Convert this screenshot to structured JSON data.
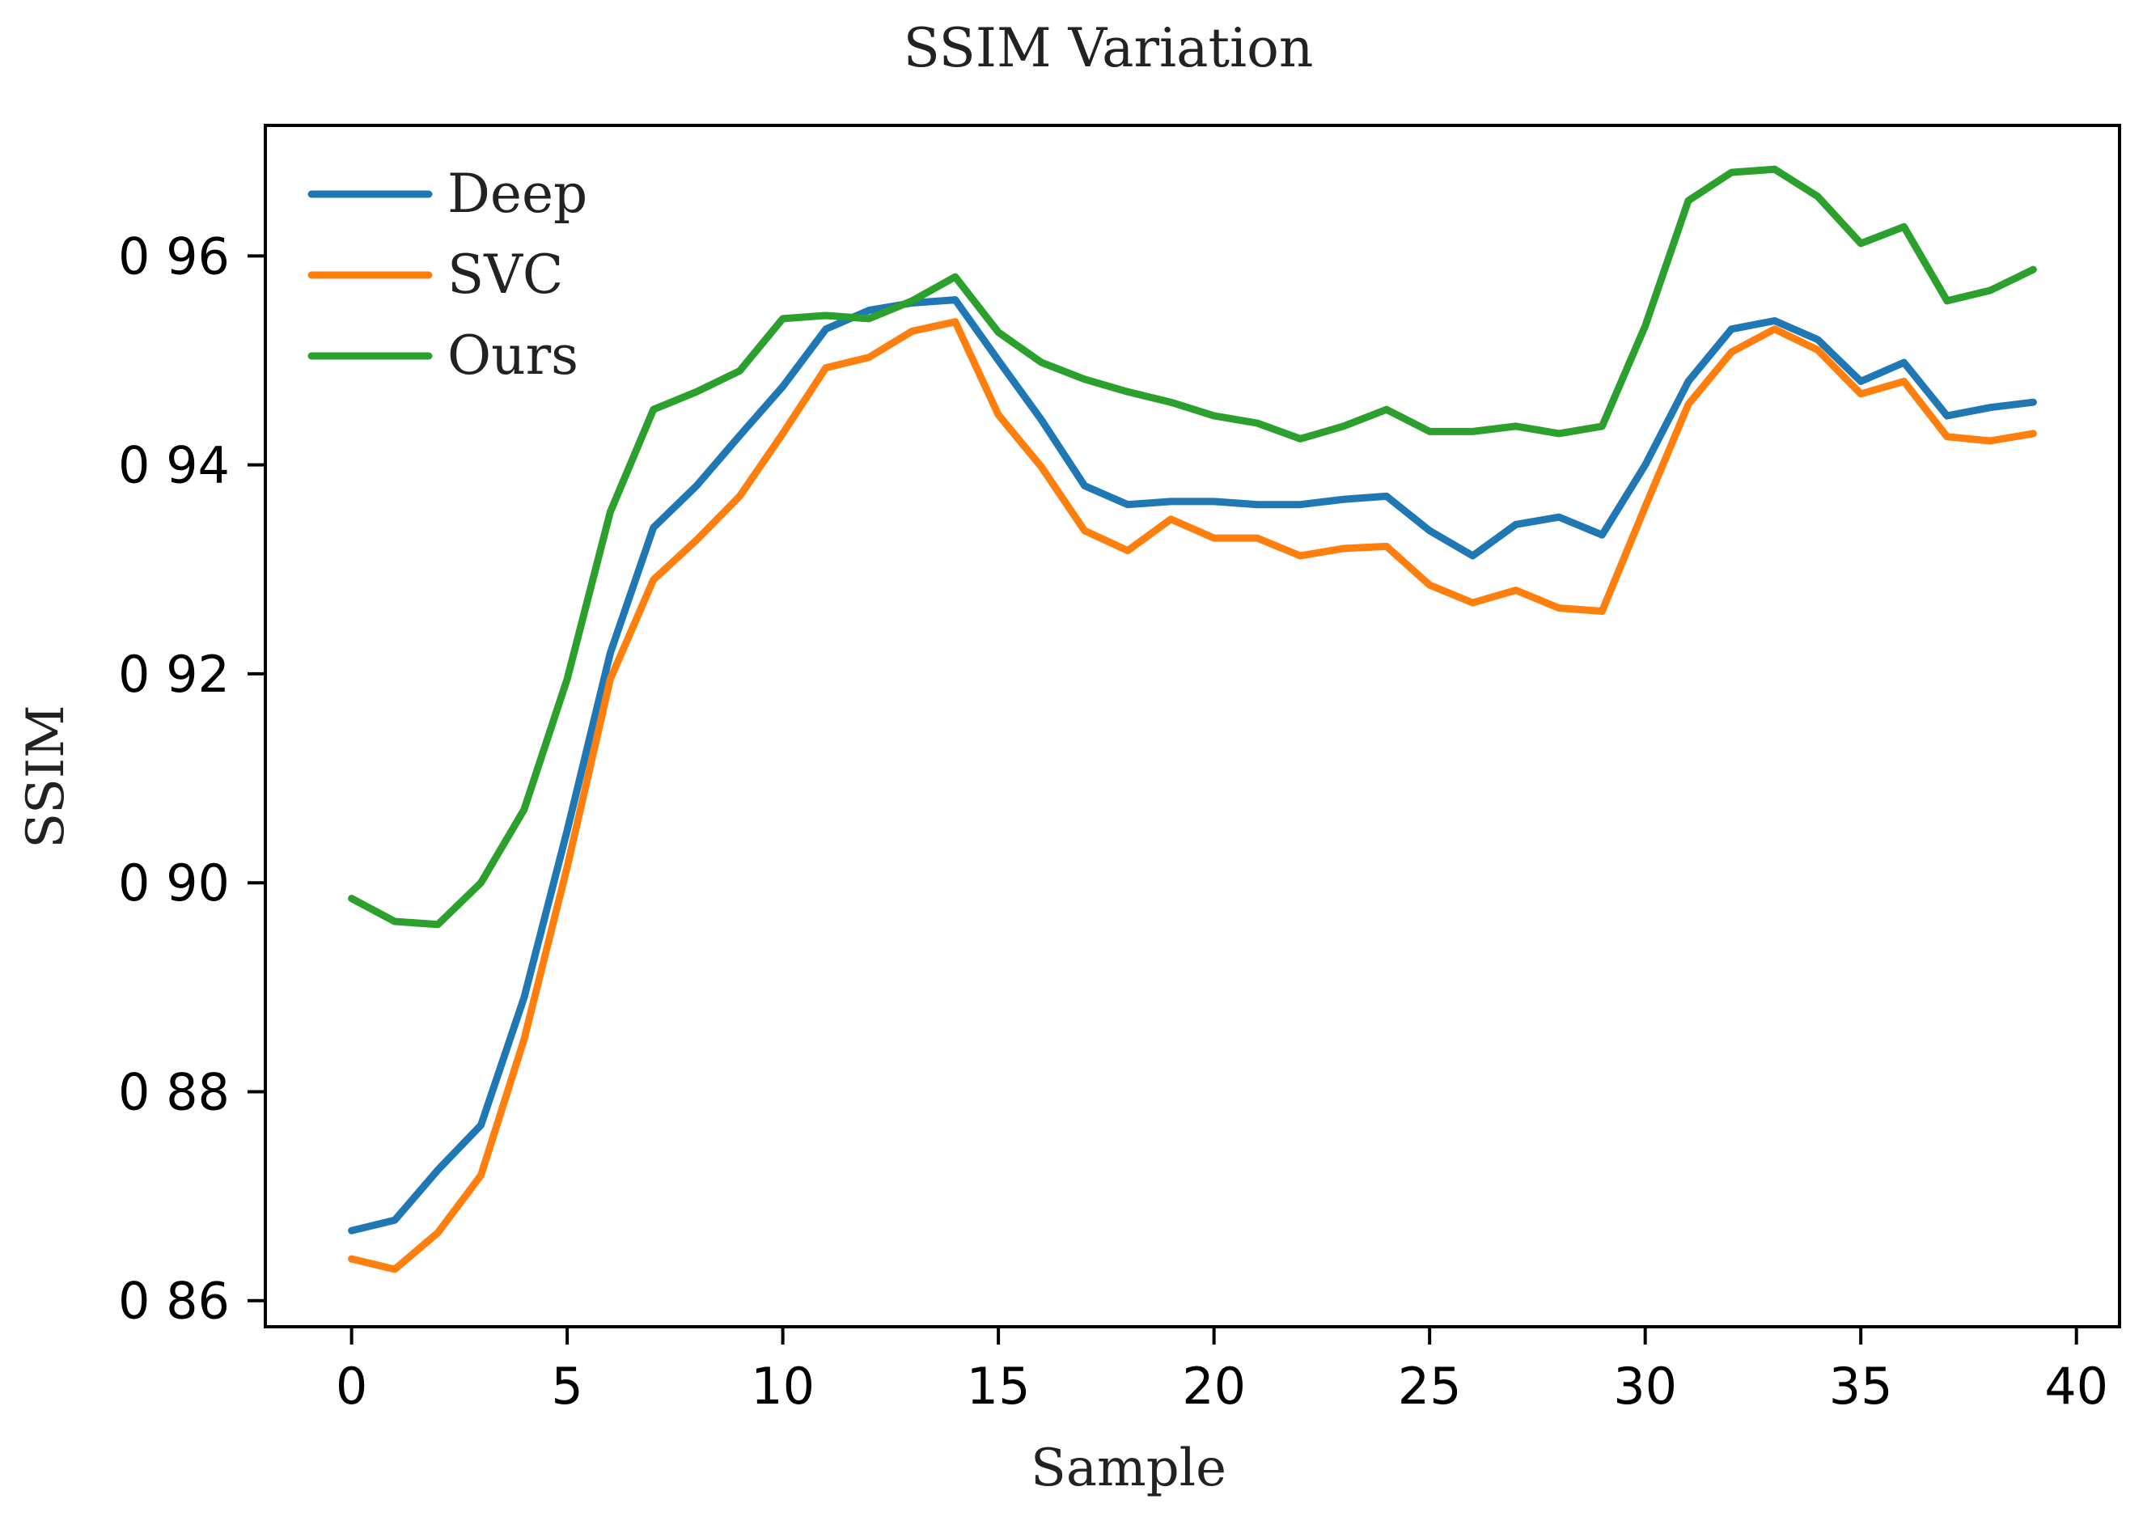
{
  "chart_data": {
    "type": "line",
    "title": "SSIM Variation",
    "xlabel": "Sample",
    "ylabel": "SSIM",
    "xlim": [
      -2,
      41
    ],
    "ylim": [
      0.8575,
      0.9725
    ],
    "x_ticks": [
      0,
      5,
      10,
      15,
      20,
      25,
      30,
      35,
      40
    ],
    "x_tick_labels": [
      "0",
      "5",
      "10",
      "15",
      "20",
      "25",
      "30",
      "35",
      "40"
    ],
    "y_ticks": [
      0.86,
      0.88,
      0.9,
      0.92,
      0.94,
      0.96
    ],
    "y_tick_labels": [
      "0 86",
      "0 88",
      "0 90",
      "0 92",
      "0 94",
      "0 96"
    ],
    "grid": false,
    "legend_position": "top-left",
    "x": [
      0,
      1,
      2,
      3,
      4,
      5,
      6,
      7,
      8,
      9,
      10,
      11,
      12,
      13,
      14,
      15,
      16,
      17,
      18,
      19,
      20,
      21,
      22,
      23,
      24,
      25,
      26,
      27,
      28,
      29,
      30,
      31,
      32,
      33,
      34,
      35,
      36,
      37,
      38,
      39
    ],
    "series": [
      {
        "name": "Deep",
        "color": "#1f77b4",
        "values": [
          0.8667,
          0.8677,
          0.8725,
          0.8768,
          0.889,
          0.905,
          0.922,
          0.934,
          0.938,
          0.9428,
          0.9475,
          0.953,
          0.9548,
          0.9555,
          0.9558,
          0.95,
          0.9443,
          0.938,
          0.9362,
          0.9365,
          0.9365,
          0.9362,
          0.9362,
          0.9367,
          0.937,
          0.9337,
          0.9313,
          0.9343,
          0.935,
          0.9333,
          0.94,
          0.948,
          0.953,
          0.9538,
          0.952,
          0.948,
          0.9498,
          0.9447,
          0.9455,
          0.946
        ]
      },
      {
        "name": "SVC",
        "color": "#ff7f0e",
        "values": [
          0.864,
          0.863,
          0.8665,
          0.872,
          0.885,
          0.9015,
          0.9195,
          0.929,
          0.9328,
          0.937,
          0.943,
          0.9493,
          0.9503,
          0.9528,
          0.9537,
          0.9448,
          0.9398,
          0.9337,
          0.9318,
          0.9348,
          0.933,
          0.933,
          0.9313,
          0.932,
          0.9322,
          0.9285,
          0.9268,
          0.928,
          0.9263,
          0.926,
          0.936,
          0.9458,
          0.9508,
          0.953,
          0.951,
          0.9468,
          0.948,
          0.9427,
          0.9423,
          0.943
        ]
      },
      {
        "name": "Ours",
        "color": "#2ca02c",
        "values": [
          0.8985,
          0.8963,
          0.896,
          0.9,
          0.907,
          0.9195,
          0.9355,
          0.9453,
          0.947,
          0.949,
          0.954,
          0.9543,
          0.954,
          0.9557,
          0.958,
          0.9527,
          0.9498,
          0.9482,
          0.947,
          0.946,
          0.9447,
          0.944,
          0.9425,
          0.9437,
          0.9453,
          0.9432,
          0.9432,
          0.9437,
          0.943,
          0.9437,
          0.9533,
          0.9653,
          0.968,
          0.9683,
          0.9657,
          0.9612,
          0.9628,
          0.9557,
          0.9567,
          0.9587
        ]
      }
    ]
  }
}
